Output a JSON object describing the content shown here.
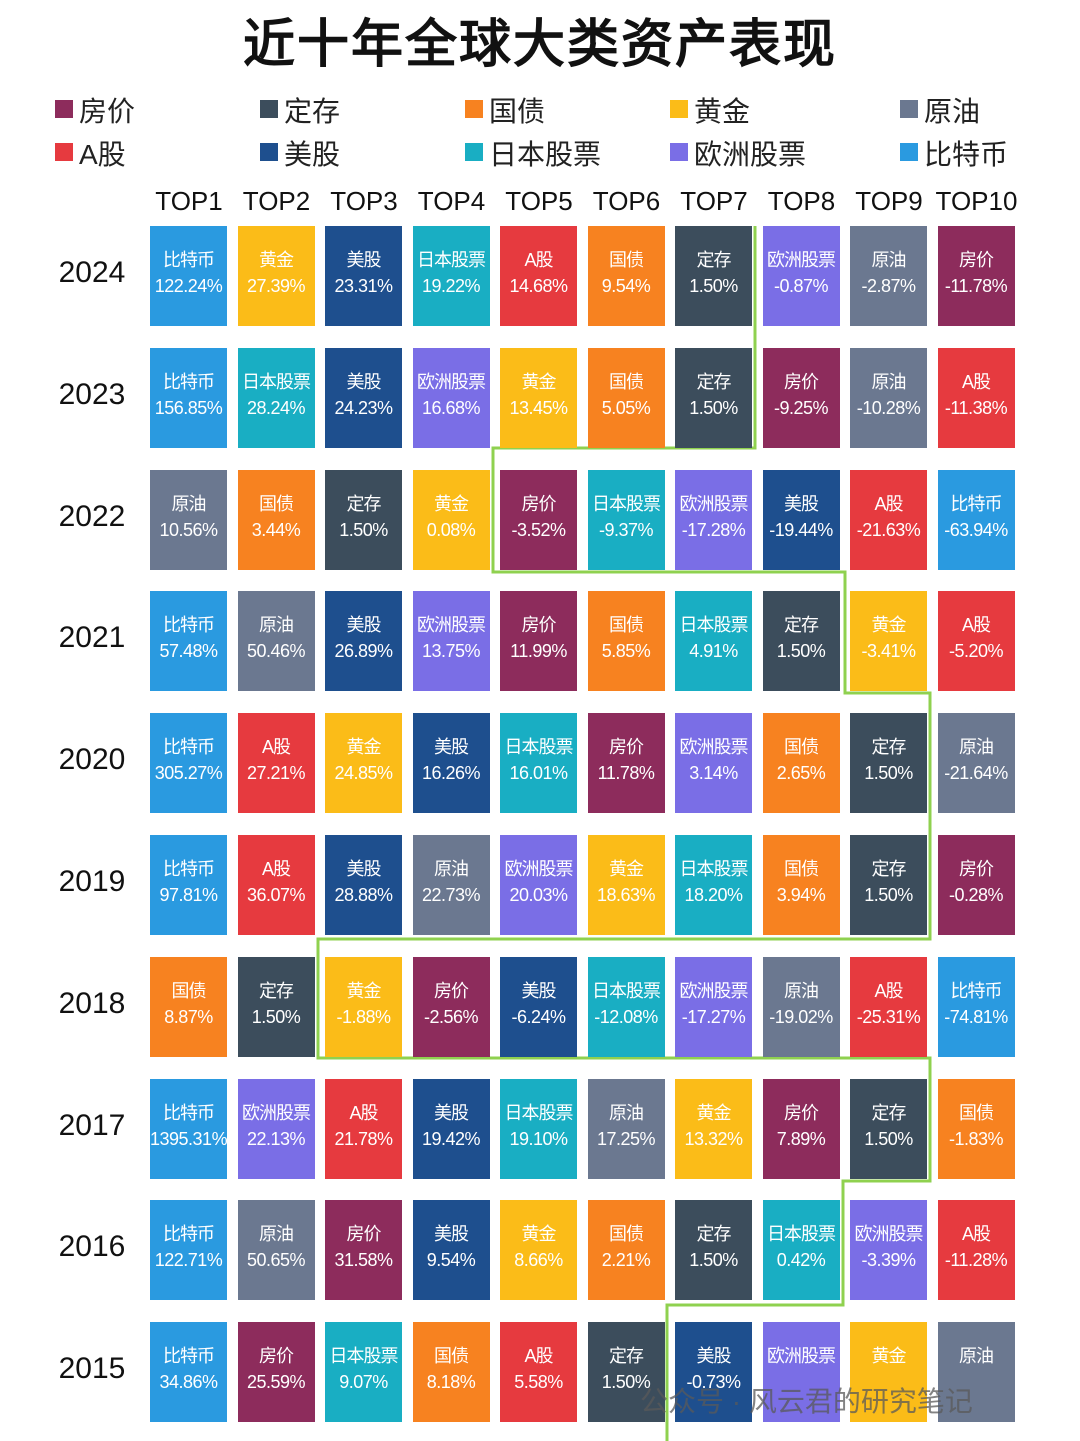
{
  "title": "近十年全球大类资产表现",
  "legend": [
    {
      "name": "房价",
      "color": "#8d2c5c"
    },
    {
      "name": "定存",
      "color": "#3c4d5c"
    },
    {
      "name": "国债",
      "color": "#f78220"
    },
    {
      "name": "黄金",
      "color": "#fbbc18"
    },
    {
      "name": "原油",
      "color": "#6b7890"
    },
    {
      "name": "A股",
      "color": "#e63a3f"
    },
    {
      "name": "美股",
      "color": "#1e4f8e"
    },
    {
      "name": "日本股票",
      "color": "#19aec3"
    },
    {
      "name": "欧洲股票",
      "color": "#7a6ee6"
    },
    {
      "name": "比特币",
      "color": "#2a9ae0"
    }
  ],
  "columns": [
    "TOP1",
    "TOP2",
    "TOP3",
    "TOP4",
    "TOP5",
    "TOP6",
    "TOP7",
    "TOP8",
    "TOP9",
    "TOP10"
  ],
  "rows": [
    {
      "year": "2024",
      "cells": [
        {
          "name": "比特币",
          "value": "122.24%"
        },
        {
          "name": "黄金",
          "value": "27.39%"
        },
        {
          "name": "美股",
          "value": "23.31%"
        },
        {
          "name": "日本股票",
          "value": "19.22%"
        },
        {
          "name": "A股",
          "value": "14.68%"
        },
        {
          "name": "国债",
          "value": "9.54%"
        },
        {
          "name": "定存",
          "value": "1.50%"
        },
        {
          "name": "欧洲股票",
          "value": "-0.87%"
        },
        {
          "name": "原油",
          "value": "-2.87%"
        },
        {
          "name": "房价",
          "value": "-11.78%"
        }
      ]
    },
    {
      "year": "2023",
      "cells": [
        {
          "name": "比特币",
          "value": "156.85%"
        },
        {
          "name": "日本股票",
          "value": "28.24%"
        },
        {
          "name": "美股",
          "value": "24.23%"
        },
        {
          "name": "欧洲股票",
          "value": "16.68%"
        },
        {
          "name": "黄金",
          "value": "13.45%"
        },
        {
          "name": "国债",
          "value": "5.05%"
        },
        {
          "name": "定存",
          "value": "1.50%"
        },
        {
          "name": "房价",
          "value": "-9.25%"
        },
        {
          "name": "原油",
          "value": "-10.28%"
        },
        {
          "name": "A股",
          "value": "-11.38%"
        }
      ]
    },
    {
      "year": "2022",
      "cells": [
        {
          "name": "原油",
          "value": "10.56%"
        },
        {
          "name": "国债",
          "value": "3.44%"
        },
        {
          "name": "定存",
          "value": "1.50%"
        },
        {
          "name": "黄金",
          "value": "0.08%"
        },
        {
          "name": "房价",
          "value": "-3.52%"
        },
        {
          "name": "日本股票",
          "value": "-9.37%"
        },
        {
          "name": "欧洲股票",
          "value": "-17.28%"
        },
        {
          "name": "美股",
          "value": "-19.44%"
        },
        {
          "name": "A股",
          "value": "-21.63%"
        },
        {
          "name": "比特币",
          "value": "-63.94%"
        }
      ]
    },
    {
      "year": "2021",
      "cells": [
        {
          "name": "比特币",
          "value": "57.48%"
        },
        {
          "name": "原油",
          "value": "50.46%"
        },
        {
          "name": "美股",
          "value": "26.89%"
        },
        {
          "name": "欧洲股票",
          "value": "13.75%"
        },
        {
          "name": "房价",
          "value": "11.99%"
        },
        {
          "name": "国债",
          "value": "5.85%"
        },
        {
          "name": "日本股票",
          "value": "4.91%"
        },
        {
          "name": "定存",
          "value": "1.50%"
        },
        {
          "name": "黄金",
          "value": "-3.41%"
        },
        {
          "name": "A股",
          "value": "-5.20%"
        }
      ]
    },
    {
      "year": "2020",
      "cells": [
        {
          "name": "比特币",
          "value": "305.27%"
        },
        {
          "name": "A股",
          "value": "27.21%"
        },
        {
          "name": "黄金",
          "value": "24.85%"
        },
        {
          "name": "美股",
          "value": "16.26%"
        },
        {
          "name": "日本股票",
          "value": "16.01%"
        },
        {
          "name": "房价",
          "value": "11.78%"
        },
        {
          "name": "欧洲股票",
          "value": "3.14%"
        },
        {
          "name": "国债",
          "value": "2.65%"
        },
        {
          "name": "定存",
          "value": "1.50%"
        },
        {
          "name": "原油",
          "value": "-21.64%"
        }
      ]
    },
    {
      "year": "2019",
      "cells": [
        {
          "name": "比特币",
          "value": "97.81%"
        },
        {
          "name": "A股",
          "value": "36.07%"
        },
        {
          "name": "美股",
          "value": "28.88%"
        },
        {
          "name": "原油",
          "value": "22.73%"
        },
        {
          "name": "欧洲股票",
          "value": "20.03%"
        },
        {
          "name": "黄金",
          "value": "18.63%"
        },
        {
          "name": "日本股票",
          "value": "18.20%"
        },
        {
          "name": "国债",
          "value": "3.94%"
        },
        {
          "name": "定存",
          "value": "1.50%"
        },
        {
          "name": "房价",
          "value": "-0.28%"
        }
      ]
    },
    {
      "year": "2018",
      "cells": [
        {
          "name": "国债",
          "value": "8.87%"
        },
        {
          "name": "定存",
          "value": "1.50%"
        },
        {
          "name": "黄金",
          "value": "-1.88%"
        },
        {
          "name": "房价",
          "value": "-2.56%"
        },
        {
          "name": "美股",
          "value": "-6.24%"
        },
        {
          "name": "日本股票",
          "value": "-12.08%"
        },
        {
          "name": "欧洲股票",
          "value": "-17.27%"
        },
        {
          "name": "原油",
          "value": "-19.02%"
        },
        {
          "name": "A股",
          "value": "-25.31%"
        },
        {
          "name": "比特币",
          "value": "-74.81%"
        }
      ]
    },
    {
      "year": "2017",
      "cells": [
        {
          "name": "比特币",
          "value": "1395.31%"
        },
        {
          "name": "欧洲股票",
          "value": "22.13%"
        },
        {
          "name": "A股",
          "value": "21.78%"
        },
        {
          "name": "美股",
          "value": "19.42%"
        },
        {
          "name": "日本股票",
          "value": "19.10%"
        },
        {
          "name": "原油",
          "value": "17.25%"
        },
        {
          "name": "黄金",
          "value": "13.32%"
        },
        {
          "name": "房价",
          "value": "7.89%"
        },
        {
          "name": "定存",
          "value": "1.50%"
        },
        {
          "name": "国债",
          "value": "-1.83%"
        }
      ]
    },
    {
      "year": "2016",
      "cells": [
        {
          "name": "比特币",
          "value": "122.71%"
        },
        {
          "name": "原油",
          "value": "50.65%"
        },
        {
          "name": "房价",
          "value": "31.58%"
        },
        {
          "name": "美股",
          "value": "9.54%"
        },
        {
          "name": "黄金",
          "value": "8.66%"
        },
        {
          "name": "国债",
          "value": "2.21%"
        },
        {
          "name": "定存",
          "value": "1.50%"
        },
        {
          "name": "日本股票",
          "value": "0.42%"
        },
        {
          "name": "欧洲股票",
          "value": "-3.39%"
        },
        {
          "name": "A股",
          "value": "-11.28%"
        }
      ]
    },
    {
      "year": "2015",
      "cells": [
        {
          "name": "比特币",
          "value": "34.86%"
        },
        {
          "name": "房价",
          "value": "25.59%"
        },
        {
          "name": "日本股票",
          "value": "9.07%"
        },
        {
          "name": "国债",
          "value": "8.18%"
        },
        {
          "name": "A股",
          "value": "5.58%"
        },
        {
          "name": "定存",
          "value": "1.50%"
        },
        {
          "name": "美股",
          "value": "-0.73%"
        },
        {
          "name": "欧洲股票"
        },
        {
          "name": "黄金"
        },
        {
          "name": "原油"
        }
      ]
    }
  ],
  "watermark": "公众号 · 风云君的研究笔记"
}
